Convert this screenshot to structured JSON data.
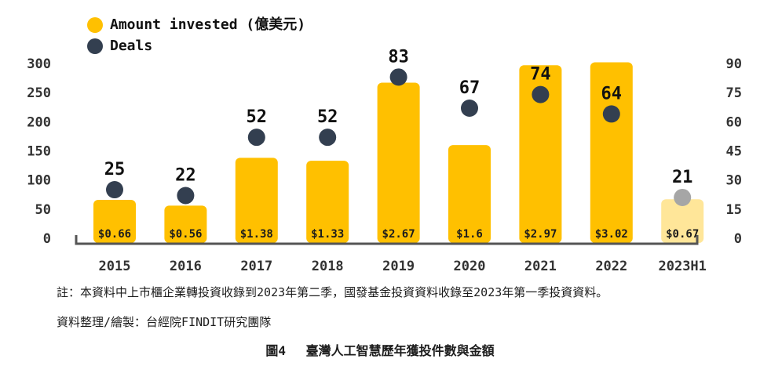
{
  "chart_data": {
    "type": "bar",
    "categories": [
      "2015",
      "2016",
      "2017",
      "2018",
      "2019",
      "2020",
      "2021",
      "2022",
      "2023H1"
    ],
    "series": [
      {
        "name": "Amount invested (億美元)",
        "axis": "left",
        "values": [
          66,
          56,
          138,
          133,
          267,
          160,
          297,
          302,
          67
        ],
        "labels": [
          "$0.66",
          "$0.56",
          "$1.38",
          "$1.33",
          "$2.67",
          "$1.6",
          "$2.97",
          "$3.02",
          "$0.67"
        ],
        "color": "#FFC000",
        "highlight_last_color": "#FFE699"
      },
      {
        "name": "Deals",
        "axis": "right",
        "type": "scatter",
        "values": [
          25,
          22,
          52,
          52,
          83,
          67,
          74,
          64,
          21
        ],
        "color": "#333F50",
        "highlight_last_color": "#A6A6A6"
      }
    ],
    "left_axis": {
      "ticks": [
        "0",
        "50",
        "100",
        "150",
        "200",
        "250",
        "300"
      ],
      "ylim": [
        0,
        300
      ]
    },
    "right_axis": {
      "ticks": [
        "0",
        "15",
        "30",
        "45",
        "60",
        "75",
        "90"
      ],
      "ylim": [
        0,
        90
      ]
    },
    "legend_position": "top-left"
  },
  "note": "註：本資料中上市櫃企業轉投資收錄到2023年第二季，國發基金投資資料收錄至2023年第一季投資資料。",
  "source": "資料整理/繪製：台經院FINDIT研究團隊",
  "caption": {
    "figure": "圖4",
    "title": "臺灣人工智慧歷年獲投件數與金額"
  }
}
